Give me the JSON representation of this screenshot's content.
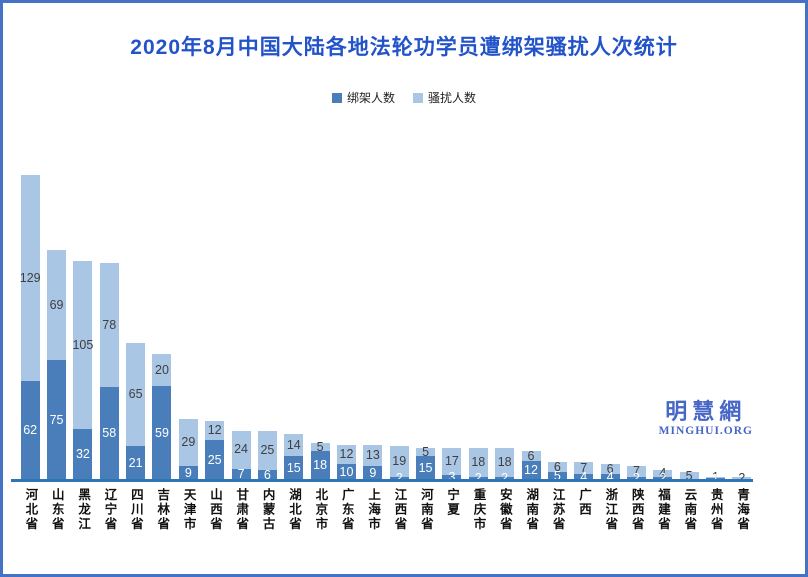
{
  "frame": {
    "border_color": "#4472C4",
    "background": "#FFFFFF"
  },
  "title": "2020年8月中国大陆各地法轮功学员遭绑架骚扰人次统计",
  "title_color": "#2353C8",
  "legend": [
    {
      "label": "绑架人数",
      "color": "#4A7EBB"
    },
    {
      "label": "骚扰人数",
      "color": "#A9C6E4"
    }
  ],
  "watermark": {
    "cn": "明慧網",
    "en": "MINGHUI.ORG",
    "color": "#4667C6"
  },
  "chart_data": {
    "type": "bar",
    "stacked": true,
    "orientation": "vertical",
    "title": "2020年8月中国大陆各地法轮功学员遭绑架骚扰人次统计",
    "legend_position": "top",
    "grid": false,
    "data_labels": true,
    "axis_line_color": "#2E75B6",
    "ylim": [
      0,
      195
    ],
    "categories": [
      "河北省",
      "山东省",
      "黑龙江",
      "辽宁省",
      "四川省",
      "吉林省",
      "天津市",
      "山西省",
      "甘肃省",
      "内蒙古",
      "湖北省",
      "北京市",
      "广东省",
      "上海市",
      "江西省",
      "河南省",
      "宁夏",
      "重庆市",
      "安徽省",
      "湖南省",
      "江苏省",
      "广西",
      "浙江省",
      "陕西省",
      "福建省",
      "云南省",
      "贵州省",
      "青海省"
    ],
    "series": [
      {
        "name": "绑架人数",
        "color": "#4A7EBB",
        "label_color": "#FFFFFF",
        "values": [
          62,
          75,
          32,
          58,
          21,
          59,
          9,
          25,
          7,
          6,
          15,
          18,
          10,
          9,
          2,
          15,
          3,
          2,
          2,
          12,
          5,
          4,
          4,
          2,
          2,
          0,
          1,
          0
        ]
      },
      {
        "name": "骚扰人数",
        "color": "#A9C6E4",
        "label_color": "#3F3F3F",
        "values": [
          129,
          69,
          105,
          78,
          65,
          20,
          29,
          12,
          24,
          25,
          14,
          5,
          12,
          13,
          19,
          5,
          17,
          18,
          18,
          6,
          6,
          7,
          6,
          7,
          4,
          5,
          1,
          2
        ]
      }
    ]
  }
}
